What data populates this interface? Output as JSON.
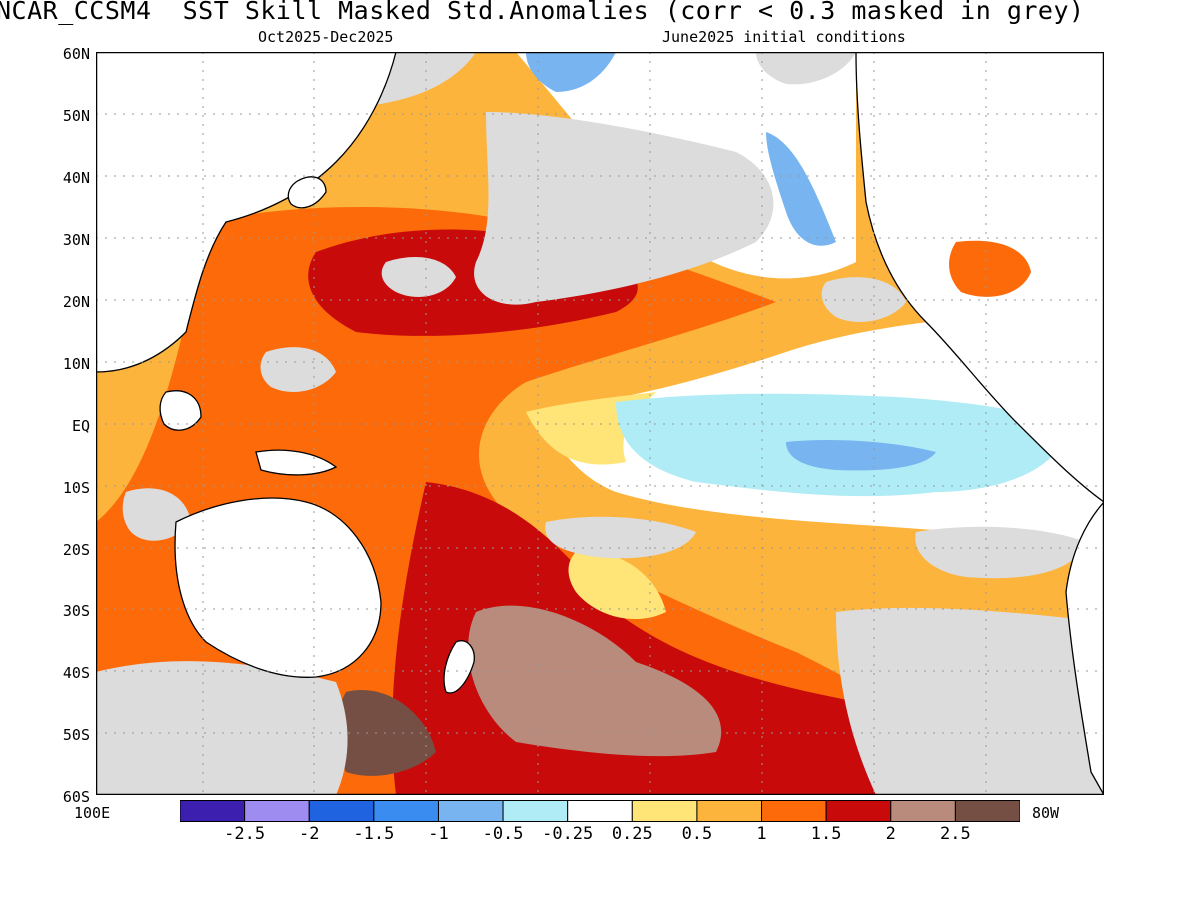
{
  "title": "NCAR_CCSM4  SST Skill Masked Std.Anomalies (corr < 0.3 masked in grey)",
  "subtitle_left": "Oct2025-Dec2025",
  "subtitle_right": "June2025 initial conditions",
  "map": {
    "lat_labels": [
      "60N",
      "50N",
      "40N",
      "30N",
      "20N",
      "10N",
      "EQ",
      "10S",
      "20S",
      "30S",
      "40S",
      "50S",
      "60S"
    ],
    "lon_labels": {
      "left": "100E",
      "right": "80W"
    },
    "extent": {
      "lon_min": 100,
      "lon_max": 280,
      "lat_min": -60,
      "lat_max": 60
    },
    "mask_color": "#dcdcdc",
    "land_color": "#ffffff",
    "coast_color": "#000000"
  },
  "colorbar": {
    "colors": [
      "#3d1fb0",
      "#9e8cf0",
      "#1f63e0",
      "#3b8cf0",
      "#78b4f0",
      "#b0ecf5",
      "#ffffff",
      "#ffe478",
      "#fcb43c",
      "#fc6a0a",
      "#c80a0a",
      "#b88b7d",
      "#754f43"
    ],
    "tick_labels": [
      "-2.5",
      "-2",
      "-1.5",
      "-1",
      "-0.5",
      "-0.25",
      "0.25",
      "0.5",
      "1",
      "1.5",
      "2",
      "2.5"
    ]
  }
}
